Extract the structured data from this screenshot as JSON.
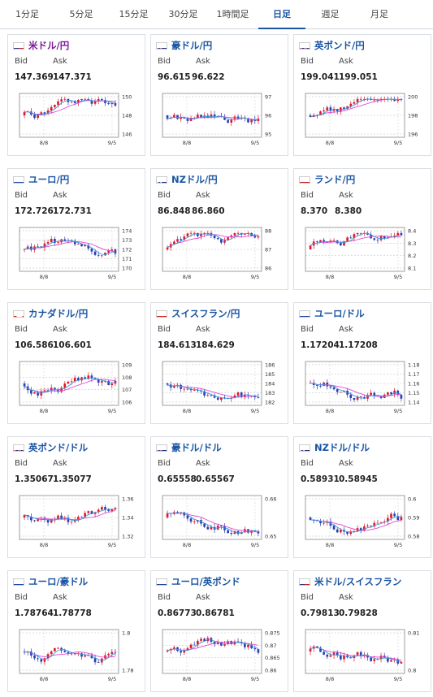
{
  "tabs": [
    {
      "label": "1分足",
      "active": false
    },
    {
      "label": "5分足",
      "active": false
    },
    {
      "label": "15分足",
      "active": false
    },
    {
      "label": "30分足",
      "active": false
    },
    {
      "label": "1時間足",
      "active": false
    },
    {
      "label": "日足",
      "active": true
    },
    {
      "label": "週足",
      "active": false
    },
    {
      "label": "月足",
      "active": false
    }
  ],
  "labels": {
    "bid": "Bid",
    "ask": "Ask"
  },
  "colors": {
    "up": "#e0182d",
    "down": "#2a3fb4",
    "ma1": "#e04ad0",
    "ma2": "#3a9ad8",
    "link": "#1a55a3"
  },
  "pairs": [
    {
      "name": "米ドル/円",
      "flag": "us",
      "bid": "147.369",
      "ask": "147.371",
      "ticks": [
        "150",
        "148",
        "146"
      ],
      "x_ticks": [
        "8/8",
        "9/5"
      ],
      "purple": true
    },
    {
      "name": "豪ドル/円",
      "flag": "au",
      "bid": "96.615",
      "ask": "96.622",
      "ticks": [
        "97",
        "96",
        "95"
      ],
      "x_ticks": [
        "8/8",
        "9/5"
      ]
    },
    {
      "name": "英ポンド/円",
      "flag": "gb",
      "bid": "199.041",
      "ask": "199.051",
      "ticks": [
        "200",
        "198",
        "196"
      ],
      "x_ticks": [
        "8/8",
        "9/5"
      ]
    },
    {
      "name": "ユーロ/円",
      "flag": "eu",
      "bid": "172.726",
      "ask": "172.731",
      "ticks": [
        "174",
        "173",
        "172",
        "171",
        "170"
      ],
      "x_ticks": [
        "8/8",
        "9/5"
      ]
    },
    {
      "name": "NZドル/円",
      "flag": "nz",
      "bid": "86.848",
      "ask": "86.860",
      "ticks": [
        "88",
        "87",
        "86"
      ],
      "x_ticks": [
        "8/8",
        "9/5"
      ]
    },
    {
      "name": "ランド/円",
      "flag": "za",
      "bid": "8.370",
      "ask": "8.380",
      "ticks": [
        "8.4",
        "8.3",
        "8.2",
        "8.1"
      ],
      "x_ticks": [
        "8/8",
        "9/5"
      ]
    },
    {
      "name": "カナダドル/円",
      "flag": "ca",
      "bid": "106.586",
      "ask": "106.601",
      "ticks": [
        "109",
        "108",
        "107",
        "106"
      ],
      "x_ticks": [
        "8/8",
        "9/5"
      ]
    },
    {
      "name": "スイスフラン/円",
      "flag": "ch",
      "bid": "184.613",
      "ask": "184.629",
      "ticks": [
        "186",
        "185",
        "184",
        "183",
        "182"
      ],
      "x_ticks": [
        "8/8",
        "9/5"
      ]
    },
    {
      "name": "ユーロ/ドル",
      "flag": "eu",
      "bid": "1.17204",
      "ask": "1.17208",
      "ticks": [
        "1.18",
        "1.17",
        "1.16",
        "1.15",
        "1.14"
      ],
      "x_ticks": [
        "8/8",
        "9/5"
      ]
    },
    {
      "name": "英ポンド/ドル",
      "flag": "gb",
      "bid": "1.35067",
      "ask": "1.35077",
      "ticks": [
        "1.36",
        "1.34",
        "1.32"
      ],
      "x_ticks": [
        "8/8",
        "9/5"
      ]
    },
    {
      "name": "豪ドル/ドル",
      "flag": "au",
      "bid": "0.65558",
      "ask": "0.65567",
      "ticks": [
        "0.66",
        "0.65"
      ],
      "x_ticks": [
        "8/8",
        "9/5"
      ]
    },
    {
      "name": "NZドル/ドル",
      "flag": "nz",
      "bid": "0.58931",
      "ask": "0.58945",
      "ticks": [
        "0.6",
        "0.59",
        "0.58"
      ],
      "x_ticks": [
        "8/8",
        "9/5"
      ]
    },
    {
      "name": "ユーロ/豪ドル",
      "flag": "eu",
      "bid": "1.78764",
      "ask": "1.78778",
      "ticks": [
        "1.8",
        "1.78"
      ],
      "x_ticks": [
        "8/8",
        "9/5"
      ]
    },
    {
      "name": "ユーロ/英ポンド",
      "flag": "eu",
      "bid": "0.86773",
      "ask": "0.86781",
      "ticks": [
        "0.875",
        "0.87",
        "0.865",
        "0.86"
      ],
      "x_ticks": [
        "8/8",
        "9/5"
      ]
    },
    {
      "name": "米ドル/スイスフラン",
      "flag": "us",
      "bid": "0.79813",
      "ask": "0.79828",
      "ticks": [
        "0.81",
        "0.8"
      ],
      "x_ticks": [
        "8/8",
        "9/5"
      ]
    }
  ]
}
